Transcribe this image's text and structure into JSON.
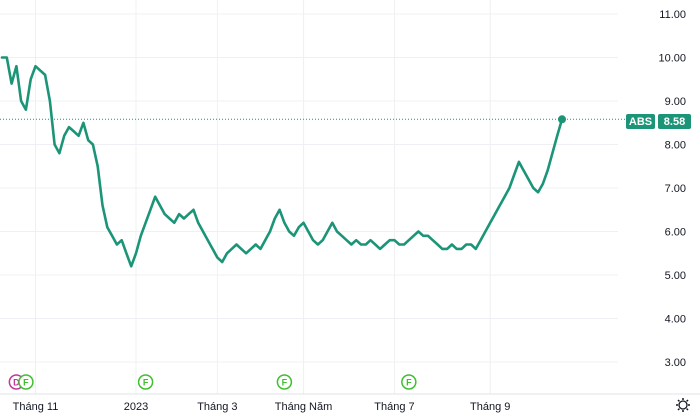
{
  "chart_data": {
    "type": "line",
    "symbol": "ABS",
    "last_value": "8.58",
    "y_ticks": [
      "11.00",
      "10.00",
      "9.00",
      "8.00",
      "7.00",
      "6.00",
      "5.00",
      "4.00",
      "3.00"
    ],
    "y_tick_values": [
      11,
      10,
      9,
      8,
      7,
      6,
      5,
      4,
      3
    ],
    "x_labels": [
      "Tháng 11",
      "2023",
      "Tháng 3",
      "Tháng Năm",
      "Tháng 7",
      "Tháng 9"
    ],
    "x_label_index": [
      7,
      28,
      45,
      63,
      82,
      102
    ],
    "ylim": [
      2.5,
      11.4
    ],
    "x_count": 118,
    "grid": true,
    "line_color": "#1b9478",
    "series": [
      {
        "values": [
          10.0,
          10.0,
          9.4,
          9.8,
          9.0,
          8.8,
          9.5,
          9.8,
          9.7,
          9.6,
          9.0,
          8.0,
          7.8,
          8.2,
          8.4,
          8.3,
          8.2,
          8.5,
          8.1,
          8.0,
          7.5,
          6.6,
          6.1,
          5.9,
          5.7,
          5.8,
          5.5,
          5.2,
          5.5,
          5.9,
          6.2,
          6.5,
          6.8,
          6.6,
          6.4,
          6.3,
          6.2,
          6.4,
          6.3,
          6.4,
          6.5,
          6.2,
          6.0,
          5.8,
          5.6,
          5.4,
          5.3,
          5.5,
          5.6,
          5.7,
          5.6,
          5.5,
          5.6,
          5.7,
          5.6,
          5.8,
          6.0,
          6.3,
          6.5,
          6.2,
          6.0,
          5.9,
          6.1,
          6.2,
          6.0,
          5.8,
          5.7,
          5.8,
          6.0,
          6.2,
          6.0,
          5.9,
          5.8,
          5.7,
          5.8,
          5.7,
          5.7,
          5.8,
          5.7,
          5.6,
          5.7,
          5.8,
          5.8,
          5.7,
          5.7,
          5.8,
          5.9,
          6.0,
          5.9,
          5.9,
          5.8,
          5.7,
          5.6,
          5.6,
          5.7,
          5.6,
          5.6,
          5.7,
          5.7,
          5.6,
          5.8,
          6.0,
          6.2,
          6.4,
          6.6,
          6.8,
          7.0,
          7.3,
          7.6,
          7.4,
          7.2,
          7.0,
          6.9,
          7.1,
          7.4,
          7.8,
          8.2,
          8.58
        ]
      }
    ],
    "events": [
      {
        "label": "D",
        "index": 3,
        "color": "#c2379b"
      },
      {
        "label": "F",
        "index": 5,
        "color": "#3fbf2f"
      },
      {
        "label": "F",
        "index": 30,
        "color": "#3fbf2f"
      },
      {
        "label": "F",
        "index": 59,
        "color": "#3fbf2f"
      },
      {
        "label": "F",
        "index": 85,
        "color": "#3fbf2f"
      }
    ]
  }
}
